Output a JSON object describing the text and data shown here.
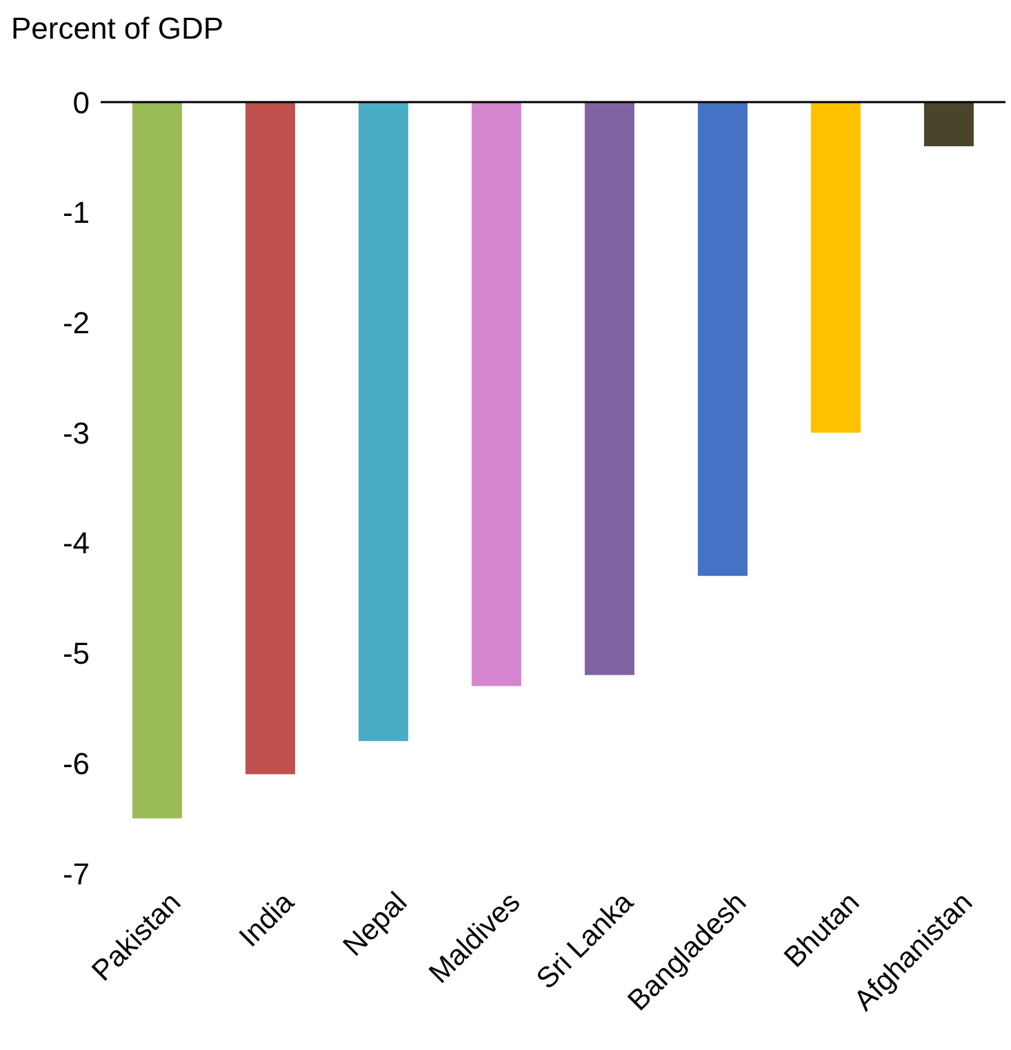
{
  "chart_data": {
    "type": "bar",
    "ylabel": "Percent of GDP",
    "categories": [
      "Pakistan",
      "India",
      "Nepal",
      "Maldives",
      "Sri Lanka",
      "Bangladesh",
      "Bhutan",
      "Afghanistan"
    ],
    "values": [
      -6.5,
      -6.1,
      -5.8,
      -5.3,
      -5.2,
      -4.3,
      -3.0,
      -0.4
    ],
    "colors": [
      "#9bbb59",
      "#c0504d",
      "#4bacc6",
      "#d686ce",
      "#8064a2",
      "#4472c4",
      "#ffc000",
      "#4a452a"
    ],
    "ylim": [
      -7,
      0
    ],
    "yticks": [
      -7,
      -6,
      -5,
      -4,
      -3,
      -2,
      -1,
      0
    ],
    "grid": false
  }
}
